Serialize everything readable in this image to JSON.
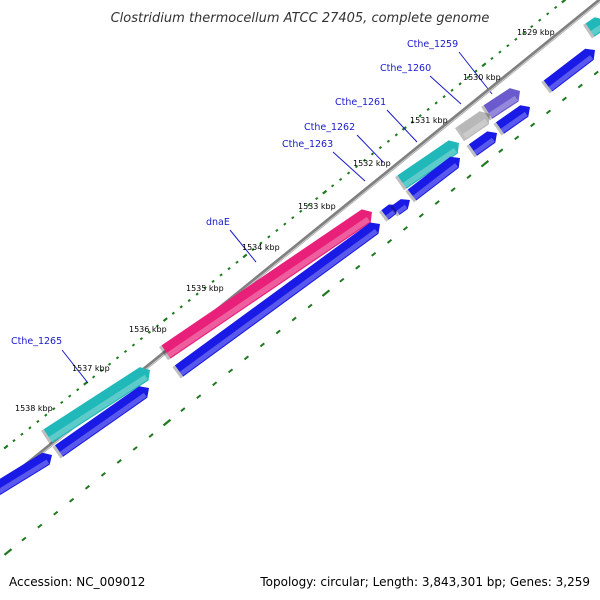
{
  "title": "Clostridium thermocellum ATCC 27405, complete genome",
  "accession": "Accession: NC_009012",
  "summary": "Topology: circular; Length: 3,843,301 bp; Genes: 3,259",
  "colors": {
    "tick": "#1f7a1f",
    "backbone": "#808080",
    "label": "#1a1acc",
    "leader": "#1a1acc",
    "cds_forward": "#1a1ae6",
    "cds_reverse": "#1a1ae6",
    "gene_teal": "#20b8b8",
    "gene_pink": "#e8207a",
    "gene_gray": "#b8b8b8",
    "gene_purple": "#6a5acd"
  },
  "kbp_labels": [
    "1529 kbp",
    "1530 kbp",
    "1531 kbp",
    "1532 kbp",
    "1533 kbp",
    "1534 kbp",
    "1535 kbp",
    "1536 kbp",
    "1537 kbp",
    "1538 kbp"
  ],
  "genes": [
    {
      "name": "Cthe_1259",
      "color": "gene_purple"
    },
    {
      "name": "Cthe_1260",
      "color": "gene_gray"
    },
    {
      "name": "Cthe_1261",
      "color": "gene_teal"
    },
    {
      "name": "Cthe_1262",
      "color": "cds_forward"
    },
    {
      "name": "Cthe_1263",
      "color": "cds_forward"
    },
    {
      "name": "dnaE",
      "color": "gene_pink"
    },
    {
      "name": "Cthe_1265",
      "color": "gene_teal"
    }
  ]
}
